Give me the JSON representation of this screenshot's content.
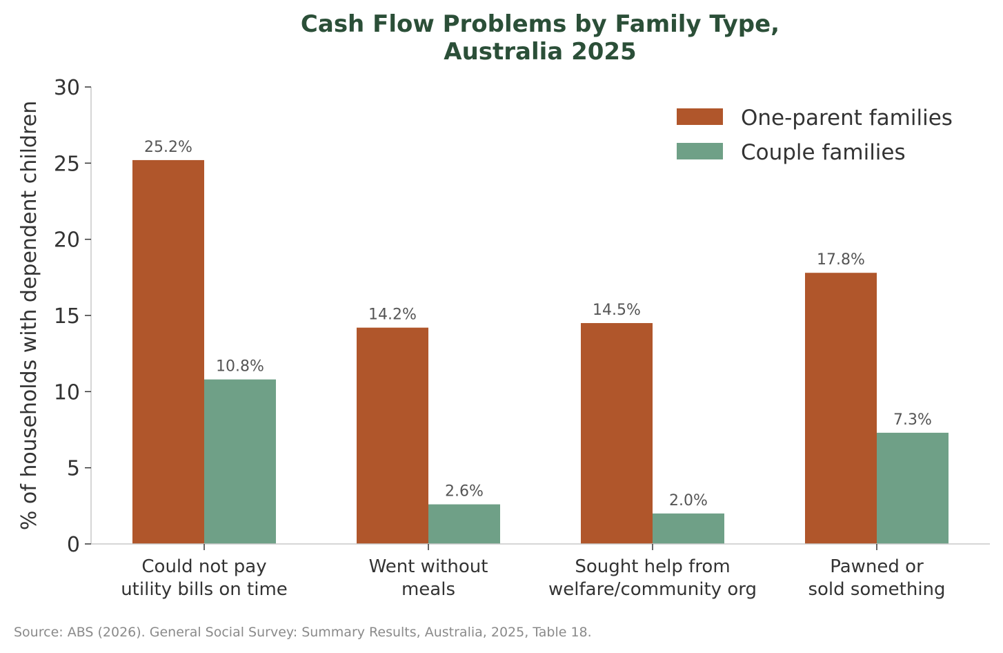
{
  "chart_data": {
    "type": "bar",
    "title": [
      "Cash Flow Problems by Family Type,",
      "Australia 2025"
    ],
    "ylabel": "% of households with dependent children",
    "xlabel": "",
    "ylim": [
      0,
      30
    ],
    "yticks": [
      "0",
      "5",
      "10",
      "15",
      "20",
      "25",
      "30"
    ],
    "categories": [
      [
        "Could not pay",
        "utility bills on time"
      ],
      [
        "Went without",
        "meals"
      ],
      [
        "Sought help from",
        "welfare/community org"
      ],
      [
        "Pawned or",
        "sold something"
      ]
    ],
    "series": [
      {
        "name": "One-parent families",
        "color": "#b0562b",
        "values": [
          25.2,
          14.2,
          14.5,
          17.8
        ],
        "labels": [
          "25.2%",
          "14.2%",
          "14.5%",
          "17.8%"
        ]
      },
      {
        "name": "Couple families",
        "color": "#6fa087",
        "values": [
          10.8,
          2.6,
          2.0,
          7.3
        ],
        "labels": [
          "10.8%",
          "2.6%",
          "2.0%",
          "7.3%"
        ]
      }
    ],
    "legend_position": "top-right",
    "grid": false,
    "source": "Source: ABS (2026). General Social Survey: Summary Results, Australia, 2025, Table 18."
  }
}
